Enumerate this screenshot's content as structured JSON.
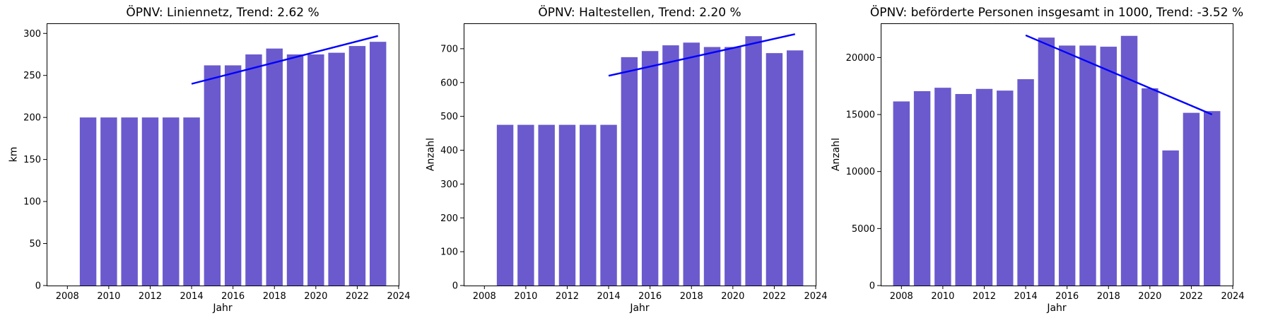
{
  "colors": {
    "bar": "#6a5acd",
    "trend": "#0000ff"
  },
  "chart_data": [
    {
      "type": "bar",
      "title": "ÖPNV: Liniennetz, Trend:  2.62 %",
      "xlabel": "Jahr",
      "ylabel": "km",
      "x": [
        2009,
        2010,
        2011,
        2012,
        2013,
        2014,
        2015,
        2016,
        2017,
        2018,
        2019,
        2020,
        2021,
        2022,
        2023
      ],
      "values": [
        200,
        200,
        200,
        200,
        200,
        200,
        262,
        262,
        275,
        282,
        275,
        275,
        277,
        285,
        290
      ],
      "xlim": [
        2007,
        2024
      ],
      "ylim": [
        0,
        312
      ],
      "xticks": [
        2008,
        2010,
        2012,
        2014,
        2016,
        2018,
        2020,
        2022,
        2024
      ],
      "yticks": [
        0,
        50,
        100,
        150,
        200,
        250,
        300
      ],
      "trend": {
        "x": [
          2014,
          2023
        ],
        "y": [
          240,
          297
        ]
      },
      "grid": false
    },
    {
      "type": "bar",
      "title": "ÖPNV: Haltestellen, Trend:  2.20 %",
      "xlabel": "Jahr",
      "ylabel": "Anzahl",
      "x": [
        2009,
        2010,
        2011,
        2012,
        2013,
        2014,
        2015,
        2016,
        2017,
        2018,
        2019,
        2020,
        2021,
        2022,
        2023
      ],
      "values": [
        475,
        475,
        475,
        475,
        475,
        475,
        675,
        693,
        710,
        718,
        705,
        705,
        737,
        687,
        695
      ],
      "xlim": [
        2007,
        2024
      ],
      "ylim": [
        0,
        775
      ],
      "xticks": [
        2008,
        2010,
        2012,
        2014,
        2016,
        2018,
        2020,
        2022,
        2024
      ],
      "yticks": [
        0,
        100,
        200,
        300,
        400,
        500,
        600,
        700
      ],
      "trend": {
        "x": [
          2014,
          2023
        ],
        "y": [
          620,
          743
        ]
      },
      "grid": false
    },
    {
      "type": "bar",
      "title": "ÖPNV: beförderte Personen insgesamt in 1000, Trend:  -3.52 %",
      "xlabel": "Jahr",
      "ylabel": "Anzahl",
      "x": [
        2008,
        2009,
        2010,
        2011,
        2012,
        2013,
        2014,
        2015,
        2016,
        2017,
        2018,
        2019,
        2020,
        2021,
        2022,
        2023
      ],
      "values": [
        16150,
        17050,
        17350,
        16800,
        17250,
        17100,
        18100,
        21750,
        21050,
        21050,
        20950,
        21900,
        17300,
        11850,
        15150,
        15300
      ],
      "xlim": [
        2007,
        2024
      ],
      "ylim": [
        0,
        23000
      ],
      "xticks": [
        2008,
        2010,
        2012,
        2014,
        2016,
        2018,
        2020,
        2022,
        2024
      ],
      "yticks": [
        0,
        5000,
        10000,
        15000,
        20000
      ],
      "trend": {
        "x": [
          2014,
          2023
        ],
        "y": [
          21950,
          15000
        ]
      },
      "grid": false
    }
  ]
}
